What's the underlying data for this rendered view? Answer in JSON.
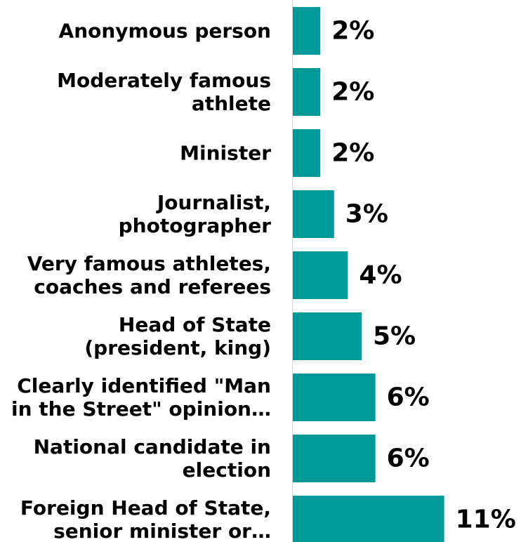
{
  "chart_data": {
    "type": "bar",
    "orientation": "horizontal",
    "categories": [
      [
        "Anonymous person"
      ],
      [
        "Moderately famous",
        "athlete"
      ],
      [
        "Minister"
      ],
      [
        "Journalist,",
        "photographer"
      ],
      [
        "Very famous athletes,",
        "coaches and referees"
      ],
      [
        "Head of State",
        "(president, king)"
      ],
      [
        "Clearly identified \"Man",
        "in the Street\" opinion…"
      ],
      [
        "National candidate in",
        "election"
      ],
      [
        "Foreign Head of State,",
        "senior minister or…"
      ]
    ],
    "values": [
      2,
      2,
      2,
      3,
      4,
      5,
      6,
      6,
      11
    ],
    "value_labels": [
      "2%",
      "2%",
      "2%",
      "3%",
      "4%",
      "5%",
      "6%",
      "6%",
      "11%"
    ],
    "bar_color": "#009999",
    "title": "",
    "xlabel": "",
    "ylabel": "",
    "grid": false,
    "legend": "none",
    "axis_line_color": "#d9d9d9"
  }
}
